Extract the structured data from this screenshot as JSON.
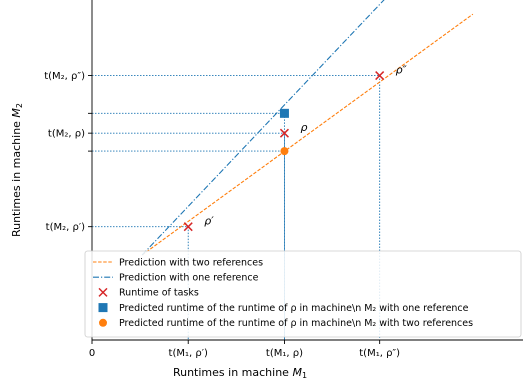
{
  "chart_data": {
    "type": "line",
    "xlabel_main": "Runtimes in machine ",
    "xlabel_machine": "M",
    "xlabel_sub": "1",
    "ylabel_main": "Runtimes in machine ",
    "ylabel_machine": "M",
    "ylabel_sub": "2",
    "xlim": [
      0,
      4.3
    ],
    "ylim": [
      0,
      3.6
    ],
    "grid": false,
    "legend_position": "lower-right",
    "x_origin_label": "0",
    "x_ticks": [
      {
        "value": 0.96,
        "label": "t(M₁, ρ′)"
      },
      {
        "value": 1.92,
        "label": "t(M₁, ρ)"
      },
      {
        "value": 2.87,
        "label": "t(M₁, ρ″)"
      }
    ],
    "y_ticks": [
      {
        "value": 1.2,
        "label": "t(M₂, ρ′)"
      },
      {
        "value": 2.19,
        "label": "t(M₂, ρ)"
      },
      {
        "value": 2.8,
        "label": "t(M₂, ρ″)"
      }
    ],
    "y_minor_ticks": [
      2.0,
      2.4
    ],
    "series": [
      {
        "name": "Prediction with two references",
        "style": "dashed",
        "color": "#ff7f0e",
        "points": [
          [
            0.5,
            0.9
          ],
          [
            3.8,
            3.45
          ]
        ]
      },
      {
        "name": "Prediction with one reference",
        "style": "dashdot",
        "color": "#1f77b4",
        "points": [
          [
            0.5,
            0.9
          ],
          [
            2.93,
            3.62
          ]
        ]
      }
    ],
    "tasks": {
      "name": "Runtime of tasks",
      "marker": "x",
      "color": "#d62728",
      "points": [
        {
          "x": 0.96,
          "y": 1.2,
          "label": "ρ′"
        },
        {
          "x": 1.92,
          "y": 2.19,
          "label": "ρ"
        },
        {
          "x": 2.87,
          "y": 2.8,
          "label": "ρ″"
        }
      ]
    },
    "pred_one": {
      "name": "Predicted runtime of the runtime of ρ in machine\\n M₂ with one reference",
      "marker": "square",
      "color": "#1f77b4",
      "x": 1.92,
      "y": 2.4
    },
    "pred_two": {
      "name": "Predicted runtime of the runtime of ρ in machine\\n M₂ with two references",
      "marker": "circle",
      "color": "#ff7f0e",
      "x": 1.92,
      "y": 2.0
    },
    "guide_color": "#1f77b4",
    "legend": [
      "Prediction with two references",
      "Prediction with one reference",
      "Runtime of tasks",
      "Predicted runtime of the runtime of ρ in machine\\n M₂ with one reference",
      "Predicted runtime of the runtime of ρ in machine\\n M₂ with two references"
    ]
  }
}
